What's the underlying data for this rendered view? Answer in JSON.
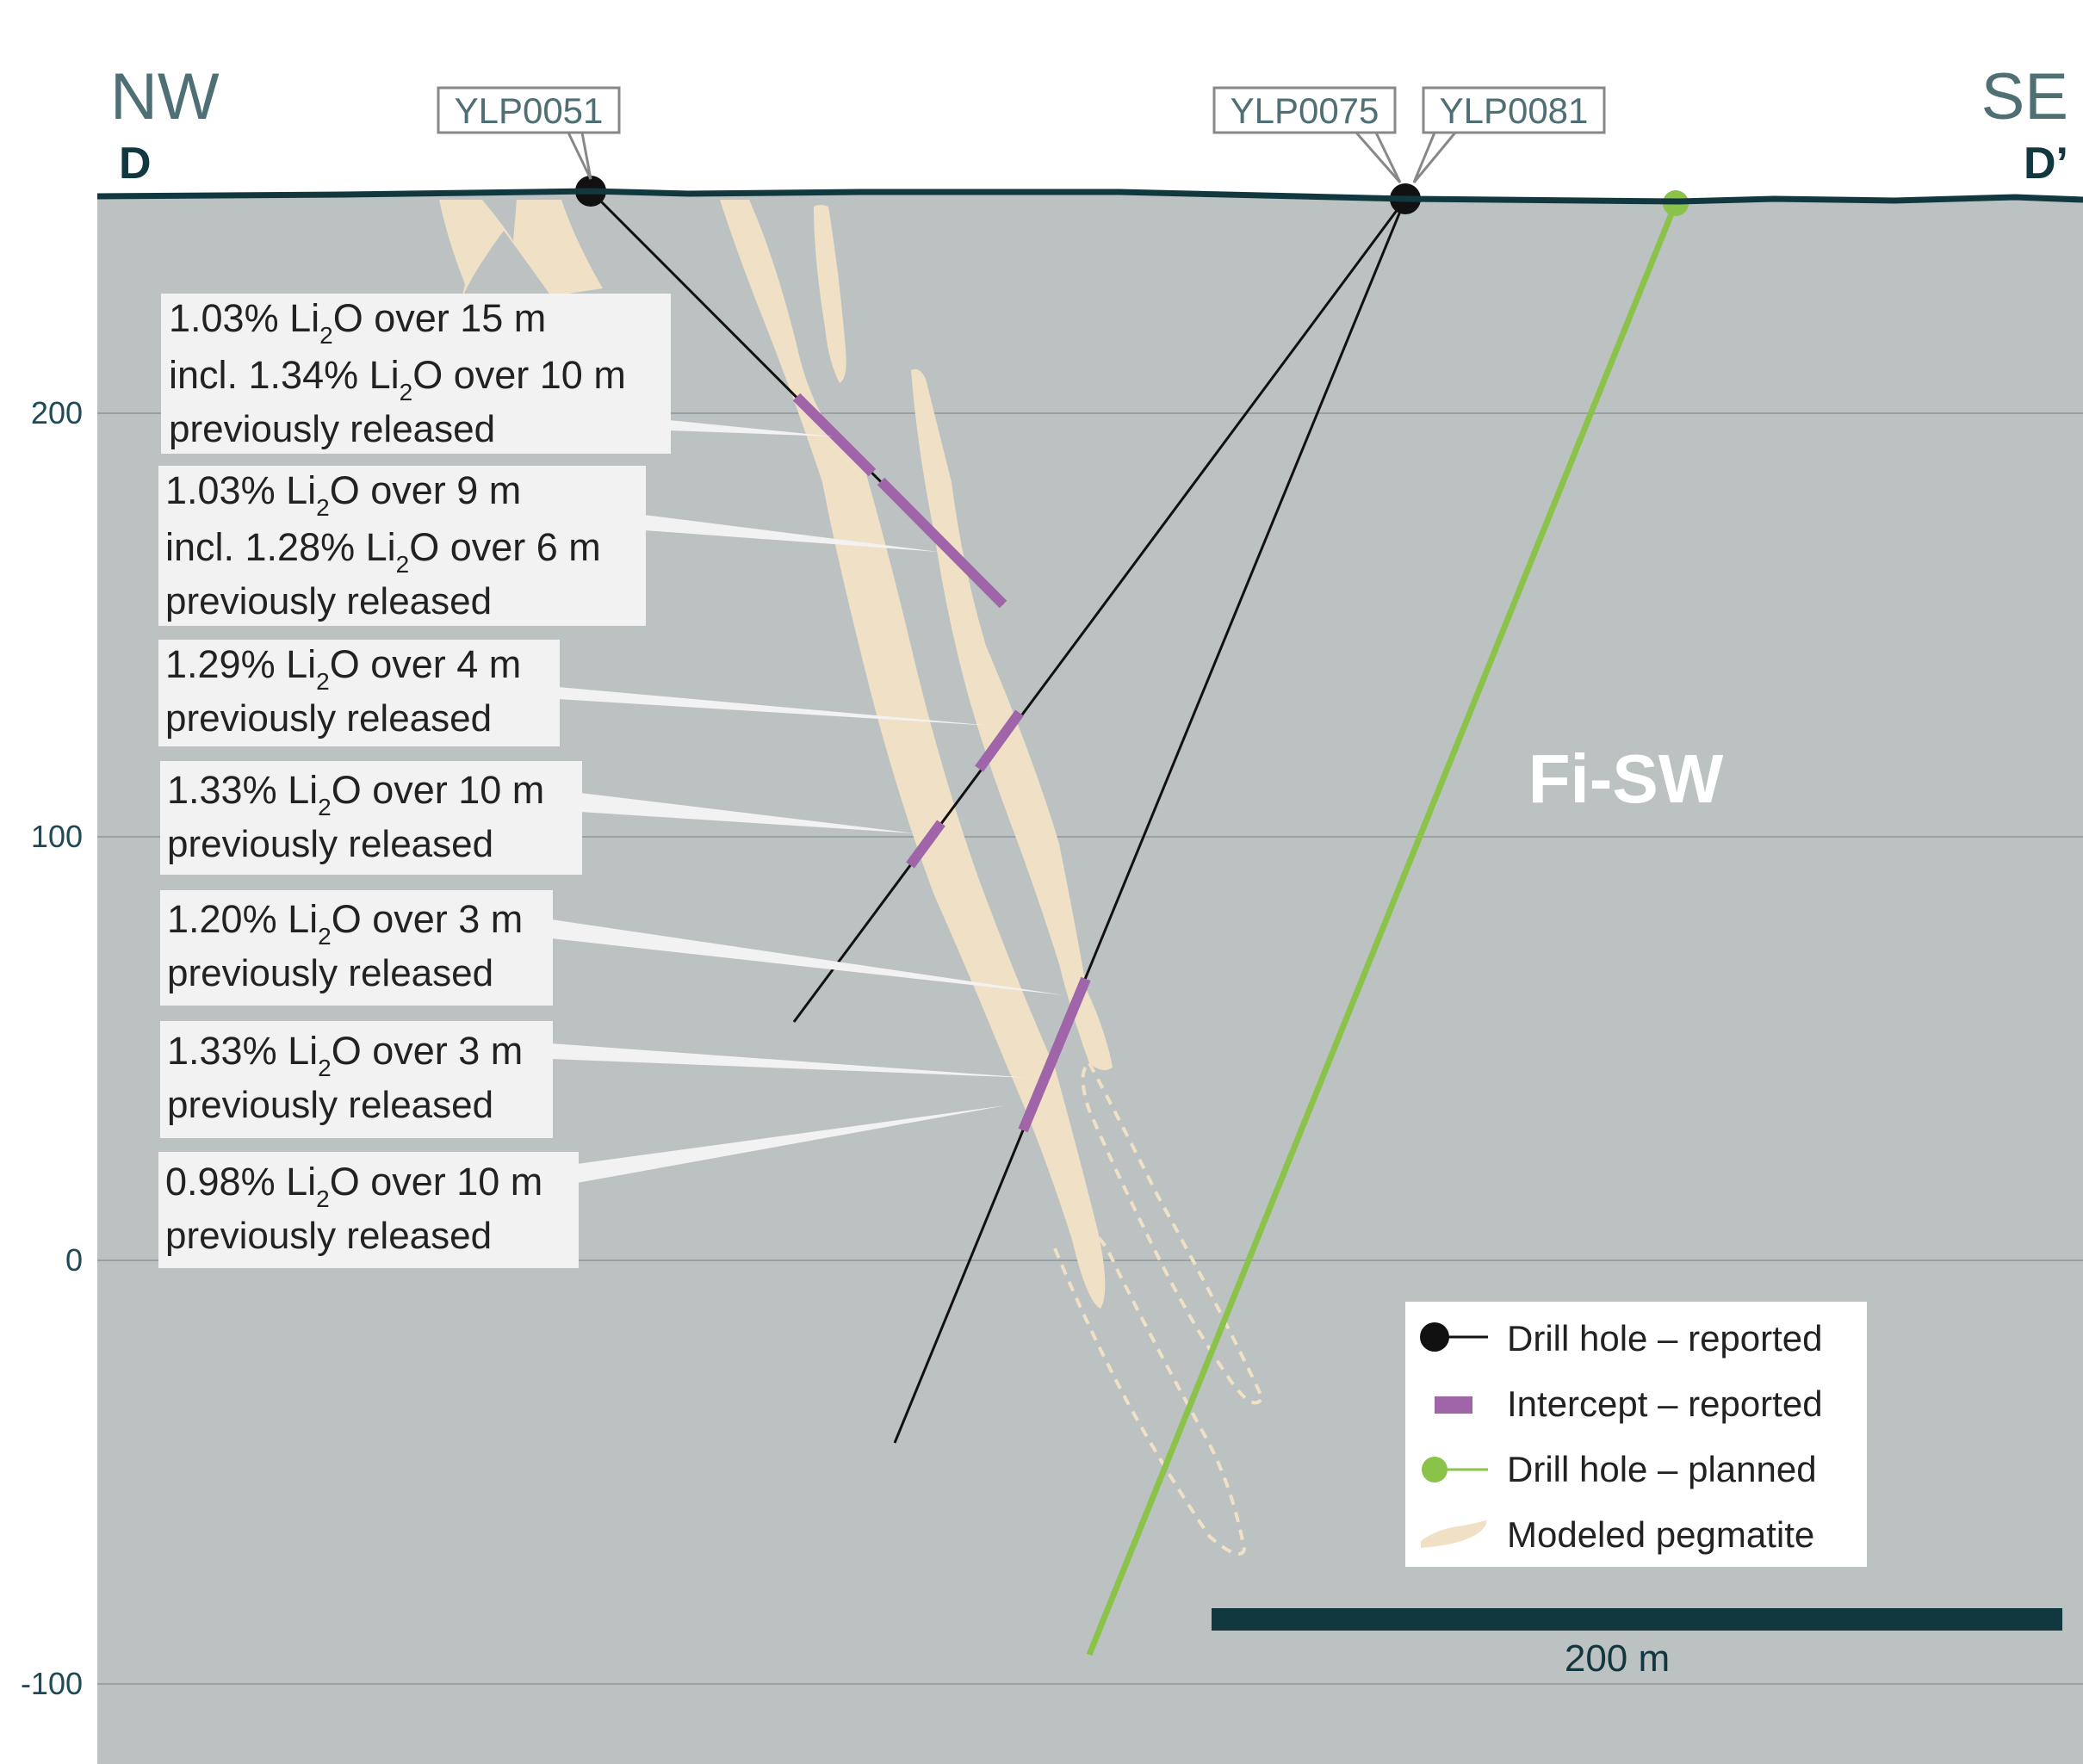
{
  "direction": {
    "left": "NW",
    "right": "SE",
    "left_section": "D",
    "right_section": "D’"
  },
  "zone_label": "Fi-SW",
  "elevation_ticks": [
    "200",
    "100",
    "0",
    "-100"
  ],
  "drill_holes": [
    {
      "id": "YLP0051",
      "status": "reported"
    },
    {
      "id": "YLP0075",
      "status": "reported"
    },
    {
      "id": "YLP0081",
      "status": "reported"
    }
  ],
  "intercepts": [
    {
      "lines": [
        [
          "1.03% Li",
          "2",
          "O over 15 m"
        ],
        [
          "incl. 1.34% Li",
          "2",
          "O over 10 m"
        ]
      ],
      "note": "previously released"
    },
    {
      "lines": [
        [
          "1.03% Li",
          "2",
          "O over 9 m"
        ],
        [
          "incl. 1.28% Li",
          "2",
          "O over 6 m"
        ]
      ],
      "note": "previously released"
    },
    {
      "lines": [
        [
          "1.29% Li",
          "2",
          "O over 4 m"
        ]
      ],
      "note": "previously released"
    },
    {
      "lines": [
        [
          "1.33% Li",
          "2",
          "O over 10 m"
        ]
      ],
      "note": "previously released"
    },
    {
      "lines": [
        [
          "1.20% Li",
          "2",
          "O over 3 m"
        ]
      ],
      "note": "previously released"
    },
    {
      "lines": [
        [
          "1.33% Li",
          "2",
          "O over 3 m"
        ]
      ],
      "note": "previously released"
    },
    {
      "lines": [
        [
          "0.98% Li",
          "2",
          "O over 10 m"
        ]
      ],
      "note": "previously released"
    }
  ],
  "legend": [
    {
      "label": "Drill hole – reported",
      "icon": "black-dot-line-icon"
    },
    {
      "label": "Intercept – reported",
      "icon": "purple-bar-icon"
    },
    {
      "label": "Drill hole – planned",
      "icon": "green-dot-line-icon"
    },
    {
      "label": "Modeled pegmatite",
      "icon": "pegmatite-swatch-icon"
    }
  ],
  "scale_bar": {
    "label": "200 m"
  },
  "colors": {
    "ground": "#bcc1c2",
    "surface_line": "#12383f",
    "pegmatite": "#f0e0c6",
    "intercept": "#a065a9",
    "planned_hole": "#8bc34a",
    "reported_hole": "#111111"
  }
}
